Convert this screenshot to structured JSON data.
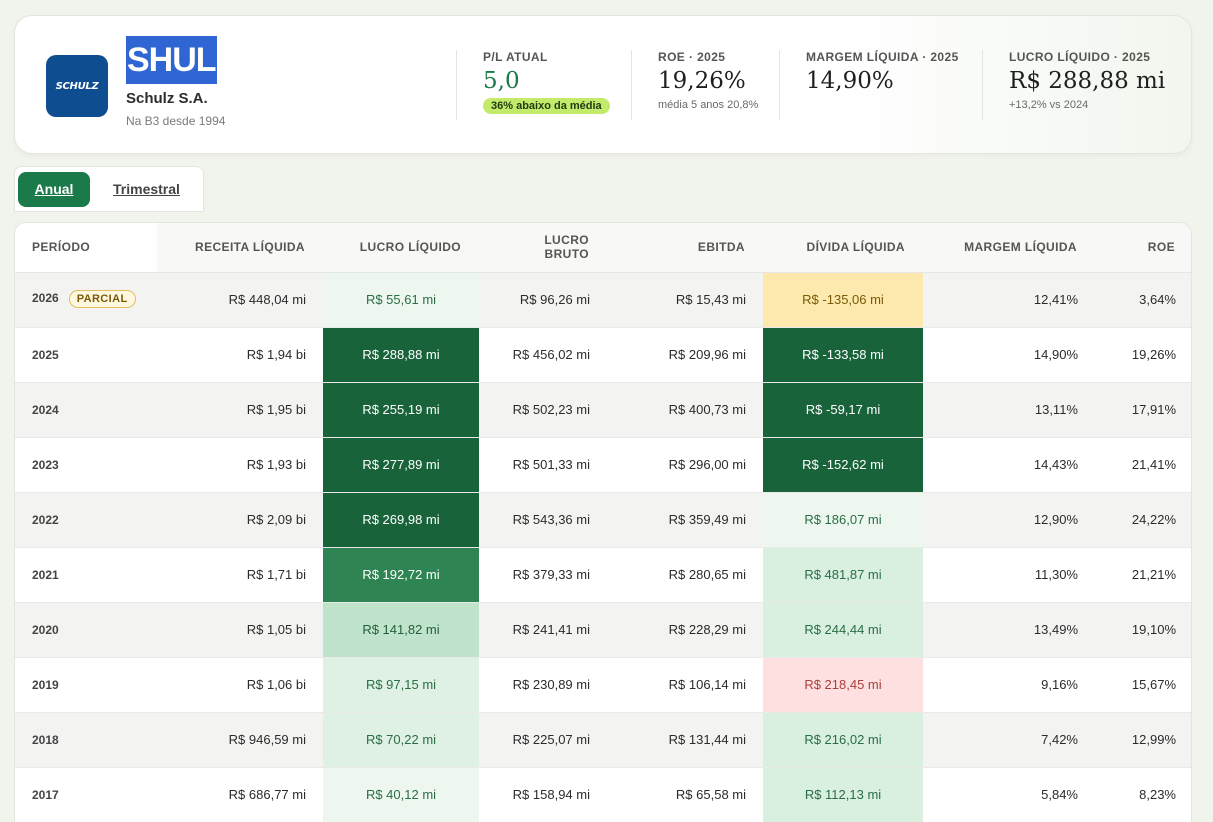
{
  "company": {
    "logo_text": "SCHULZ",
    "ticker": "SHUL",
    "name": "Schulz S.A.",
    "since": "Na B3 desde 1994",
    "brand_color": "#0e4d8f"
  },
  "metrics": [
    {
      "label": "P/L ATUAL",
      "value": "5,0",
      "badge": "36% abaixo da média",
      "value_color": "#1b7a49"
    },
    {
      "label": "ROE · 2025",
      "value": "19,26%",
      "sub": "média 5 anos 20,8%"
    },
    {
      "label": "MARGEM LÍQUIDA · 2025",
      "value": "14,90%"
    },
    {
      "label": "LUCRO LÍQUIDO · 2025",
      "value": "R$ 288,88 mi",
      "sub": "+13,2% vs 2024"
    }
  ],
  "tabs": {
    "annual": "Anual",
    "quarterly": "Trimestral",
    "active": "Anual"
  },
  "table": {
    "headers": [
      "PERÍODO",
      "RECEITA LÍQUIDA",
      "LUCRO LÍQUIDO",
      "LUCRO BRUTO",
      "EBITDA",
      "DÍVIDA LÍQUIDA",
      "MARGEM LÍQUIDA",
      "ROE"
    ],
    "partial_label": "PARCIAL",
    "rows": [
      {
        "period": "2026",
        "partial": true,
        "receita": "R$ 448,04 mi",
        "lucro": "R$ 55,61 mi",
        "lucro_bg": "#eef7ef",
        "lucro_fg": "#2a6e45",
        "bruto": "R$ 96,26 mi",
        "ebitda": "R$ 15,43 mi",
        "divida": "R$ -135,06 mi",
        "divida_bg": "#fde9ad",
        "divida_fg": "#7a5a07",
        "margem": "12,41%",
        "roe": "3,64%"
      },
      {
        "period": "2025",
        "receita": "R$ 1,94 bi",
        "lucro": "R$ 288,88 mi",
        "lucro_bg": "#18633a",
        "lucro_fg": "#ffffff",
        "bruto": "R$ 456,02 mi",
        "ebitda": "R$ 209,96 mi",
        "divida": "R$ -133,58 mi",
        "divida_bg": "#18633a",
        "divida_fg": "#ffffff",
        "margem": "14,90%",
        "roe": "19,26%"
      },
      {
        "period": "2024",
        "receita": "R$ 1,95 bi",
        "lucro": "R$ 255,19 mi",
        "lucro_bg": "#18633a",
        "lucro_fg": "#ffffff",
        "bruto": "R$ 502,23 mi",
        "ebitda": "R$ 400,73 mi",
        "divida": "R$ -59,17 mi",
        "divida_bg": "#18633a",
        "divida_fg": "#ffffff",
        "margem": "13,11%",
        "roe": "17,91%"
      },
      {
        "period": "2023",
        "receita": "R$ 1,93 bi",
        "lucro": "R$ 277,89 mi",
        "lucro_bg": "#18633a",
        "lucro_fg": "#ffffff",
        "bruto": "R$ 501,33 mi",
        "ebitda": "R$ 296,00 mi",
        "divida": "R$ -152,62 mi",
        "divida_bg": "#18633a",
        "divida_fg": "#ffffff",
        "margem": "14,43%",
        "roe": "21,41%"
      },
      {
        "period": "2022",
        "receita": "R$ 2,09 bi",
        "lucro": "R$ 269,98 mi",
        "lucro_bg": "#18633a",
        "lucro_fg": "#ffffff",
        "bruto": "R$ 543,36 mi",
        "ebitda": "R$ 359,49 mi",
        "divida": "R$ 186,07 mi",
        "divida_bg": "#eef7ef",
        "divida_fg": "#2a6e45",
        "margem": "12,90%",
        "roe": "24,22%"
      },
      {
        "period": "2021",
        "receita": "R$ 1,71 bi",
        "lucro": "R$ 192,72 mi",
        "lucro_bg": "#2e8553",
        "lucro_fg": "#ffffff",
        "bruto": "R$ 379,33 mi",
        "ebitda": "R$ 280,65 mi",
        "divida": "R$ 481,87 mi",
        "divida_bg": "#d9efe0",
        "divida_fg": "#2a6e45",
        "margem": "11,30%",
        "roe": "21,21%"
      },
      {
        "period": "2020",
        "receita": "R$ 1,05 bi",
        "lucro": "R$ 141,82 mi",
        "lucro_bg": "#bfe3cb",
        "lucro_fg": "#24603d",
        "bruto": "R$ 241,41 mi",
        "ebitda": "R$ 228,29 mi",
        "divida": "R$ 244,44 mi",
        "divida_bg": "#d9efe0",
        "divida_fg": "#2a6e45",
        "margem": "13,49%",
        "roe": "19,10%"
      },
      {
        "period": "2019",
        "receita": "R$ 1,06 bi",
        "lucro": "R$ 97,15 mi",
        "lucro_bg": "#dff1e4",
        "lucro_fg": "#2a6e45",
        "bruto": "R$ 230,89 mi",
        "ebitda": "R$ 106,14 mi",
        "divida": "R$ 218,45 mi",
        "divida_bg": "#fde0df",
        "divida_fg": "#a8413d",
        "margem": "9,16%",
        "roe": "15,67%"
      },
      {
        "period": "2018",
        "receita": "R$ 946,59 mi",
        "lucro": "R$ 70,22 mi",
        "lucro_bg": "#dff1e4",
        "lucro_fg": "#2a6e45",
        "bruto": "R$ 225,07 mi",
        "ebitda": "R$ 131,44 mi",
        "divida": "R$ 216,02 mi",
        "divida_bg": "#d9efe0",
        "divida_fg": "#2a6e45",
        "margem": "7,42%",
        "roe": "12,99%"
      },
      {
        "period": "2017",
        "receita": "R$ 686,77 mi",
        "lucro": "R$ 40,12 mi",
        "lucro_bg": "#eef7ef",
        "lucro_fg": "#2a6e45",
        "bruto": "R$ 158,94 mi",
        "ebitda": "R$ 65,58 mi",
        "divida": "R$ 112,13 mi",
        "divida_bg": "#d9efe0",
        "divida_fg": "#2a6e45",
        "margem": "5,84%",
        "roe": "8,23%"
      }
    ]
  }
}
